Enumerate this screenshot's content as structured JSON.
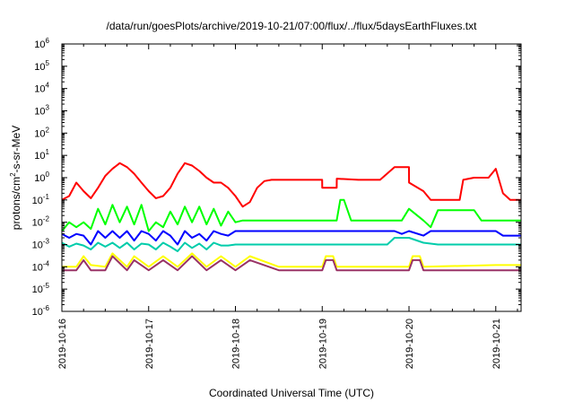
{
  "chart_data": {
    "type": "line",
    "title": "/data/run/goesPlots/archive/2019-10-21/07:00/flux/../flux/5daysEarthFluxes.txt",
    "xlabel": "Coordinated Universal Time (UTC)",
    "ylabel": {
      "pre": "protons/cm",
      "sup": "2",
      "post": "-s-sr-MeV"
    },
    "yscale": "log",
    "ylim_exp": [
      -6,
      6
    ],
    "y_tick_exponents": [
      -6,
      -5,
      -4,
      -3,
      -2,
      -1,
      0,
      1,
      2,
      3,
      4,
      5,
      6
    ],
    "y_tick_base": "10",
    "xlim": [
      "2019-10-16T00:00",
      "2019-10-21T07:00"
    ],
    "x_ticks": [
      "2019-10-16",
      "2019-10-17",
      "2019-10-18",
      "2019-10-19",
      "2019-10-20",
      "2019-10-21"
    ],
    "grid": false,
    "series": [
      {
        "color": "#ff0000",
        "x": [
          "2019-10-16T00:00",
          "2019-10-16T02:00",
          "2019-10-16T04:00",
          "2019-10-16T06:00",
          "2019-10-16T08:00",
          "2019-10-16T10:00",
          "2019-10-16T12:00",
          "2019-10-16T14:00",
          "2019-10-16T16:00",
          "2019-10-16T18:00",
          "2019-10-16T20:00",
          "2019-10-16T22:00",
          "2019-10-17T00:00",
          "2019-10-17T02:00",
          "2019-10-17T04:00",
          "2019-10-17T06:00",
          "2019-10-17T08:00",
          "2019-10-17T10:00",
          "2019-10-17T12:00",
          "2019-10-17T14:00",
          "2019-10-17T16:00",
          "2019-10-17T18:00",
          "2019-10-17T20:00",
          "2019-10-17T22:00",
          "2019-10-18T00:00",
          "2019-10-18T02:00",
          "2019-10-18T04:00",
          "2019-10-18T06:00",
          "2019-10-18T08:00",
          "2019-10-18T10:00",
          "2019-10-18T12:00",
          "2019-10-18T16:00",
          "2019-10-18T20:00",
          "2019-10-18T23:59",
          "2019-10-19T00:00",
          "2019-10-19T04:00",
          "2019-10-19T04:01",
          "2019-10-19T10:00",
          "2019-10-19T14:00",
          "2019-10-19T16:00",
          "2019-10-19T20:00",
          "2019-10-19T21:00",
          "2019-10-20T00:00",
          "2019-10-20T00:01",
          "2019-10-20T04:00",
          "2019-10-20T06:00",
          "2019-10-20T08:00",
          "2019-10-20T12:00",
          "2019-10-20T14:00",
          "2019-10-20T15:00",
          "2019-10-20T18:00",
          "2019-10-20T20:00",
          "2019-10-20T22:00",
          "2019-10-21T00:00",
          "2019-10-21T02:00",
          "2019-10-21T04:00",
          "2019-10-21T06:00",
          "2019-10-21T07:00"
        ],
        "y": [
          0.1,
          0.15,
          0.6,
          0.25,
          0.12,
          0.35,
          1.2,
          2.5,
          4.5,
          3.0,
          1.5,
          0.6,
          0.25,
          0.12,
          0.15,
          0.35,
          1.5,
          4.5,
          3.5,
          2.0,
          1.0,
          0.6,
          0.6,
          0.35,
          0.15,
          0.05,
          0.08,
          0.35,
          0.7,
          0.8,
          0.8,
          0.8,
          0.8,
          0.8,
          0.35,
          0.35,
          0.9,
          0.8,
          0.8,
          0.8,
          3.0,
          3.0,
          3.0,
          0.6,
          0.25,
          0.1,
          0.1,
          0.1,
          0.1,
          0.8,
          1.0,
          1.0,
          1.0,
          2.5,
          0.2,
          0.1,
          0.1,
          0.1
        ]
      },
      {
        "color": "#00ff00",
        "x": [
          "2019-10-16T00:00",
          "2019-10-16T02:00",
          "2019-10-16T04:00",
          "2019-10-16T06:00",
          "2019-10-16T08:00",
          "2019-10-16T10:00",
          "2019-10-16T12:00",
          "2019-10-16T14:00",
          "2019-10-16T16:00",
          "2019-10-16T18:00",
          "2019-10-16T20:00",
          "2019-10-16T22:00",
          "2019-10-17T00:00",
          "2019-10-17T02:00",
          "2019-10-17T04:00",
          "2019-10-17T06:00",
          "2019-10-17T08:00",
          "2019-10-17T10:00",
          "2019-10-17T12:00",
          "2019-10-17T14:00",
          "2019-10-17T16:00",
          "2019-10-17T18:00",
          "2019-10-17T20:00",
          "2019-10-17T22:00",
          "2019-10-18T00:00",
          "2019-10-18T02:00",
          "2019-10-18T04:00",
          "2019-10-18T06:00",
          "2019-10-19T00:00",
          "2019-10-19T04:00",
          "2019-10-19T05:00",
          "2019-10-19T06:00",
          "2019-10-19T08:00",
          "2019-10-19T20:00",
          "2019-10-19T22:00",
          "2019-10-20T00:00",
          "2019-10-20T04:00",
          "2019-10-20T06:00",
          "2019-10-20T08:00",
          "2019-10-20T12:00",
          "2019-10-20T14:00",
          "2019-10-20T18:00",
          "2019-10-20T20:00",
          "2019-10-20T22:00",
          "2019-10-21T00:00",
          "2019-10-21T02:00",
          "2019-10-21T04:00",
          "2019-10-21T07:00"
        ],
        "y": [
          0.004,
          0.01,
          0.006,
          0.01,
          0.005,
          0.04,
          0.008,
          0.06,
          0.01,
          0.05,
          0.008,
          0.06,
          0.004,
          0.01,
          0.006,
          0.03,
          0.008,
          0.05,
          0.01,
          0.05,
          0.008,
          0.04,
          0.007,
          0.03,
          0.01,
          0.012,
          0.012,
          0.012,
          0.012,
          0.012,
          0.1,
          0.1,
          0.012,
          0.012,
          0.012,
          0.04,
          0.012,
          0.006,
          0.035,
          0.035,
          0.035,
          0.035,
          0.012,
          0.012,
          0.012,
          0.012,
          0.012,
          0.012
        ]
      },
      {
        "color": "#0000ff",
        "x": [
          "2019-10-16T00:00",
          "2019-10-16T02:00",
          "2019-10-16T04:00",
          "2019-10-16T06:00",
          "2019-10-16T08:00",
          "2019-10-16T10:00",
          "2019-10-16T12:00",
          "2019-10-16T14:00",
          "2019-10-16T16:00",
          "2019-10-16T18:00",
          "2019-10-16T20:00",
          "2019-10-16T22:00",
          "2019-10-17T00:00",
          "2019-10-17T02:00",
          "2019-10-17T04:00",
          "2019-10-17T06:00",
          "2019-10-17T08:00",
          "2019-10-17T10:00",
          "2019-10-17T12:00",
          "2019-10-17T14:00",
          "2019-10-17T16:00",
          "2019-10-17T18:00",
          "2019-10-17T20:00",
          "2019-10-17T22:00",
          "2019-10-18T00:00",
          "2019-10-18T02:00",
          "2019-10-18T04:00",
          "2019-10-18T06:00",
          "2019-10-19T00:00",
          "2019-10-19T20:00",
          "2019-10-19T22:00",
          "2019-10-20T00:00",
          "2019-10-20T04:00",
          "2019-10-20T06:00",
          "2019-10-20T08:00",
          "2019-10-20T12:00",
          "2019-10-21T00:00",
          "2019-10-21T02:00",
          "2019-10-21T07:00"
        ],
        "y": [
          0.003,
          0.002,
          0.003,
          0.0025,
          0.001,
          0.004,
          0.002,
          0.004,
          0.002,
          0.004,
          0.0015,
          0.004,
          0.003,
          0.0015,
          0.004,
          0.0025,
          0.001,
          0.004,
          0.002,
          0.003,
          0.0015,
          0.004,
          0.003,
          0.0025,
          0.004,
          0.004,
          0.004,
          0.004,
          0.004,
          0.004,
          0.003,
          0.004,
          0.0025,
          0.004,
          0.004,
          0.004,
          0.004,
          0.0025,
          0.0025
        ]
      },
      {
        "color": "#00ccaa",
        "x": [
          "2019-10-16T00:00",
          "2019-10-16T02:00",
          "2019-10-16T04:00",
          "2019-10-16T06:00",
          "2019-10-16T08:00",
          "2019-10-16T10:00",
          "2019-10-16T12:00",
          "2019-10-16T14:00",
          "2019-10-16T16:00",
          "2019-10-16T18:00",
          "2019-10-16T20:00",
          "2019-10-16T22:00",
          "2019-10-17T00:00",
          "2019-10-17T02:00",
          "2019-10-17T04:00",
          "2019-10-17T06:00",
          "2019-10-17T08:00",
          "2019-10-17T10:00",
          "2019-10-17T12:00",
          "2019-10-17T14:00",
          "2019-10-17T16:00",
          "2019-10-17T18:00",
          "2019-10-17T20:00",
          "2019-10-17T22:00",
          "2019-10-18T00:00",
          "2019-10-19T00:00",
          "2019-10-19T18:00",
          "2019-10-19T20:00",
          "2019-10-20T00:00",
          "2019-10-20T04:00",
          "2019-10-20T08:00",
          "2019-10-21T00:00",
          "2019-10-21T04:00",
          "2019-10-21T07:00"
        ],
        "y": [
          0.0012,
          0.0008,
          0.0011,
          0.0009,
          0.0006,
          0.0012,
          0.0008,
          0.0012,
          0.0007,
          0.0012,
          0.0006,
          0.0011,
          0.001,
          0.0006,
          0.0012,
          0.0008,
          0.0005,
          0.0012,
          0.0007,
          0.0011,
          0.0006,
          0.0012,
          0.0009,
          0.0009,
          0.001,
          0.001,
          0.001,
          0.002,
          0.002,
          0.0012,
          0.001,
          0.001,
          0.001,
          0.001
        ]
      },
      {
        "color": "#ffff00",
        "x": [
          "2019-10-16T00:00",
          "2019-10-16T04:00",
          "2019-10-16T06:00",
          "2019-10-16T08:00",
          "2019-10-16T12:00",
          "2019-10-16T14:00",
          "2019-10-16T18:00",
          "2019-10-16T20:00",
          "2019-10-17T00:00",
          "2019-10-17T04:00",
          "2019-10-17T08:00",
          "2019-10-17T12:00",
          "2019-10-17T16:00",
          "2019-10-17T20:00",
          "2019-10-18T00:00",
          "2019-10-18T04:00",
          "2019-10-18T12:00",
          "2019-10-19T00:00",
          "2019-10-19T01:00",
          "2019-10-19T03:00",
          "2019-10-19T04:00",
          "2019-10-20T00:00",
          "2019-10-20T01:00",
          "2019-10-20T03:00",
          "2019-10-20T04:00",
          "2019-10-21T00:00",
          "2019-10-21T07:00"
        ],
        "y": [
          0.0001,
          0.0001,
          0.0003,
          0.00012,
          0.0001,
          0.0004,
          0.0001,
          0.0003,
          0.0001,
          0.0003,
          0.0001,
          0.0004,
          0.0001,
          0.0003,
          0.0001,
          0.0003,
          0.0001,
          0.0001,
          0.0003,
          0.0003,
          0.0001,
          0.0001,
          0.0003,
          0.0003,
          0.0001,
          0.00012,
          0.00012
        ]
      },
      {
        "color": "#993366",
        "x": [
          "2019-10-16T00:00",
          "2019-10-16T04:00",
          "2019-10-16T06:00",
          "2019-10-16T08:00",
          "2019-10-16T12:00",
          "2019-10-16T14:00",
          "2019-10-16T18:00",
          "2019-10-16T20:00",
          "2019-10-17T00:00",
          "2019-10-17T04:00",
          "2019-10-17T08:00",
          "2019-10-17T12:00",
          "2019-10-17T16:00",
          "2019-10-17T20:00",
          "2019-10-18T00:00",
          "2019-10-18T04:00",
          "2019-10-18T12:00",
          "2019-10-19T00:00",
          "2019-10-19T01:00",
          "2019-10-19T03:00",
          "2019-10-19T04:00",
          "2019-10-20T00:00",
          "2019-10-20T01:00",
          "2019-10-20T03:00",
          "2019-10-20T04:00",
          "2019-10-21T00:00",
          "2019-10-21T07:00"
        ],
        "y": [
          7e-05,
          7e-05,
          0.0002,
          7e-05,
          7e-05,
          0.0003,
          7e-05,
          0.0002,
          7e-05,
          0.0002,
          7e-05,
          0.0003,
          7e-05,
          0.0002,
          7e-05,
          0.0002,
          7e-05,
          7e-05,
          0.0002,
          0.0002,
          7e-05,
          7e-05,
          0.0002,
          0.0002,
          7e-05,
          7e-05,
          7e-05
        ]
      }
    ]
  }
}
